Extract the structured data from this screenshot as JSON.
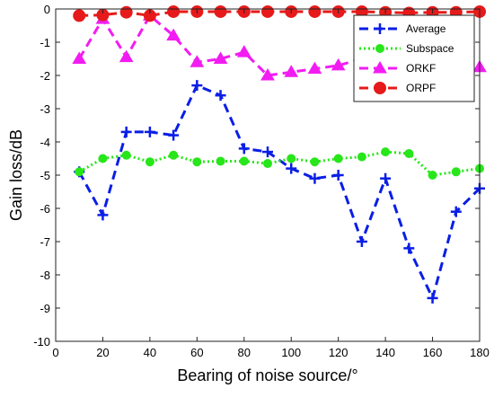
{
  "chart_data": {
    "type": "line",
    "title": "",
    "xlabel": "Bearing of noise source/°",
    "ylabel": "Gain loss/dB",
    "xlim": [
      0,
      180
    ],
    "ylim": [
      -10,
      0
    ],
    "xticks": [
      0,
      20,
      40,
      60,
      80,
      100,
      120,
      140,
      160,
      180
    ],
    "yticks": [
      0,
      -1,
      -2,
      -3,
      -4,
      -5,
      -6,
      -7,
      -8,
      -9,
      -10
    ],
    "grid": false,
    "legend_position": "top-right",
    "x": [
      10,
      20,
      30,
      40,
      50,
      60,
      70,
      80,
      90,
      100,
      110,
      120,
      130,
      140,
      150,
      160,
      170,
      180
    ],
    "series": [
      {
        "name": "Average",
        "color": "#0a1ee6",
        "line_style": "dashed",
        "marker": "plus",
        "values": [
          -4.9,
          -6.2,
          -3.7,
          -3.7,
          -3.8,
          -2.3,
          -2.6,
          -4.2,
          -4.3,
          -4.8,
          -5.1,
          -5.0,
          -7.0,
          -5.1,
          -7.2,
          -8.7,
          -6.1,
          -5.4
        ]
      },
      {
        "name": "Subspace",
        "color": "#27e61a",
        "line_style": "dotted",
        "marker": "circle",
        "values": [
          -4.9,
          -4.5,
          -4.4,
          -4.6,
          -4.4,
          -4.6,
          -4.58,
          -4.58,
          -4.65,
          -4.5,
          -4.6,
          -4.5,
          -4.45,
          -4.3,
          -4.35,
          -5.0,
          -4.9,
          -4.8
        ]
      },
      {
        "name": "ORKF",
        "color": "#f21cf2",
        "line_style": "dashed",
        "marker": "triangle",
        "values": [
          -1.5,
          -0.3,
          -1.45,
          -0.2,
          -0.8,
          -1.6,
          -1.5,
          -1.3,
          -2.0,
          -1.9,
          -1.8,
          -1.7,
          -1.5,
          -1.65,
          -1.7,
          -1.8,
          -1.5,
          -1.75
        ]
      },
      {
        "name": "ORPF",
        "color": "#e61a1a",
        "line_style": "dashed",
        "marker": "circle-filled",
        "values": [
          -0.2,
          -0.18,
          -0.1,
          -0.2,
          -0.08,
          -0.08,
          -0.08,
          -0.08,
          -0.08,
          -0.08,
          -0.08,
          -0.08,
          -0.08,
          -0.1,
          -0.12,
          -0.1,
          -0.1,
          -0.08
        ]
      }
    ]
  }
}
